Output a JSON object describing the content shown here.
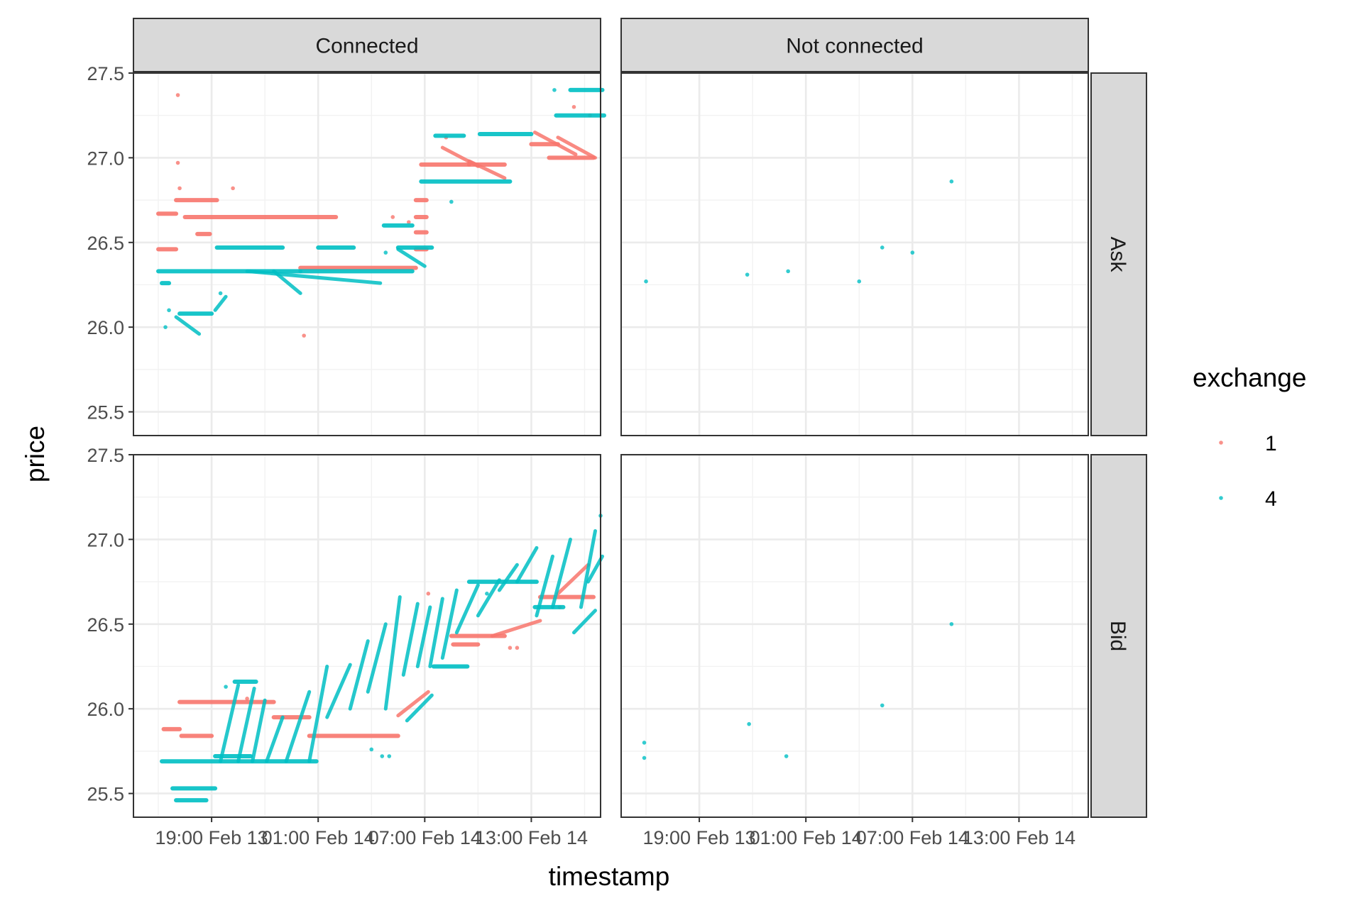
{
  "chart_data": {
    "type": "scatter",
    "facet_columns": [
      "Connected",
      "Not connected"
    ],
    "facet_rows": [
      "Ask",
      "Bid"
    ],
    "xlabel": "timestamp",
    "ylabel": "price",
    "x_tick_labels": [
      "19:00 Feb 13",
      "01:00 Feb 14",
      "07:00 Feb 14",
      "13:00 Feb 14"
    ],
    "x_ticks_hours": [
      19,
      25,
      31,
      37
    ],
    "xlim_hours": [
      14.6,
      40.9
    ],
    "y_ticks": [
      25.5,
      26.0,
      26.5,
      27.0,
      27.5
    ],
    "y_tick_labels": [
      "25.5",
      "26.0",
      "26.5",
      "27.0",
      "27.5"
    ],
    "ylim": [
      25.36,
      27.5
    ],
    "grid": true,
    "legend": {
      "title": "exchange",
      "position": "right",
      "entries": [
        {
          "label": "1",
          "color": "#F8766D"
        },
        {
          "label": "4",
          "color": "#00BFC4"
        }
      ]
    },
    "series": [
      {
        "name": "1",
        "color": "#F8766D",
        "facets": {
          "Connected|Ask": {
            "segments": [
              [
                16.0,
                17.0,
                26.67
              ],
              [
                16.0,
                17.0,
                26.46
              ],
              [
                17.0,
                19.3,
                26.75
              ],
              [
                17.5,
                26.0,
                26.65
              ],
              [
                24.0,
                30.5,
                26.35
              ],
              [
                18.2,
                18.9,
                26.55
              ],
              [
                30.5,
                31.1,
                26.75
              ],
              [
                30.5,
                31.1,
                26.65
              ],
              [
                30.5,
                31.1,
                26.56
              ],
              [
                30.5,
                31.1,
                26.46
              ],
              [
                30.8,
                33.5,
                26.96
              ],
              [
                33.5,
                35.5,
                26.96
              ],
              [
                37.0,
                38.5,
                27.08
              ],
              [
                38.0,
                40.5,
                27.0
              ]
            ],
            "ramps": [
              [
                32.0,
                27.06,
                34.0,
                26.95
              ],
              [
                33.5,
                26.98,
                35.5,
                26.88
              ],
              [
                37.2,
                27.15,
                39.5,
                27.02
              ],
              [
                38.5,
                27.12,
                40.6,
                27.0
              ]
            ],
            "points": [
              [
                17.1,
                27.37
              ],
              [
                17.1,
                26.97
              ],
              [
                17.2,
                26.82
              ],
              [
                20.2,
                26.82
              ],
              [
                29.2,
                26.65
              ],
              [
                24.2,
                25.95
              ],
              [
                32.2,
                27.12
              ],
              [
                39.4,
                27.3
              ],
              [
                40.3,
                27.25
              ],
              [
                30.1,
                26.62
              ]
            ]
          },
          "Connected|Bid": {
            "segments": [
              [
                17.2,
                22.5,
                26.04
              ],
              [
                22.5,
                24.5,
                25.95
              ],
              [
                16.3,
                17.2,
                25.88
              ],
              [
                17.3,
                19.0,
                25.84
              ],
              [
                24.5,
                29.5,
                25.84
              ],
              [
                32.5,
                35.5,
                26.43
              ],
              [
                37.5,
                40.5,
                26.66
              ],
              [
                32.6,
                34.0,
                26.38
              ]
            ],
            "ramps": [
              [
                29.5,
                25.96,
                31.2,
                26.1
              ],
              [
                34.8,
                26.43,
                37.5,
                26.52
              ],
              [
                38.5,
                26.68,
                40.2,
                26.85
              ]
            ],
            "points": [
              [
                21.0,
                26.06
              ],
              [
                31.2,
                26.68
              ],
              [
                35.8,
                26.36
              ],
              [
                36.2,
                26.36
              ],
              [
                38.6,
                26.6
              ]
            ]
          },
          "Not connected|Ask": {
            "segments": [],
            "ramps": [],
            "points": []
          },
          "Not connected|Bid": {
            "segments": [],
            "ramps": [],
            "points": []
          }
        }
      },
      {
        "name": "4",
        "color": "#00BFC4",
        "facets": {
          "Connected|Ask": {
            "segments": [
              [
                16.0,
                30.3,
                26.33
              ],
              [
                17.2,
                19.0,
                26.08
              ],
              [
                19.3,
                23.0,
                26.47
              ],
              [
                25.0,
                27.0,
                26.47
              ],
              [
                28.7,
                30.3,
                26.6
              ],
              [
                31.6,
                33.2,
                27.13
              ],
              [
                34.1,
                37.0,
                27.14
              ],
              [
                30.8,
                35.8,
                26.86
              ],
              [
                38.4,
                41.1,
                27.25
              ],
              [
                29.5,
                31.4,
                26.47
              ],
              [
                39.2,
                41.0,
                27.4
              ],
              [
                16.2,
                16.6,
                26.26
              ]
            ],
            "ramps": [
              [
                17.0,
                26.06,
                18.3,
                25.96
              ],
              [
                21.0,
                26.33,
                28.5,
                26.26
              ],
              [
                22.5,
                26.33,
                24.0,
                26.2
              ],
              [
                29.5,
                26.46,
                31.0,
                26.36
              ],
              [
                19.2,
                26.1,
                19.8,
                26.18
              ]
            ],
            "points": [
              [
                16.4,
                26.0
              ],
              [
                16.6,
                26.1
              ],
              [
                19.5,
                26.2
              ],
              [
                24.0,
                26.33
              ],
              [
                38.3,
                27.4
              ],
              [
                32.5,
                26.74
              ],
              [
                28.8,
                26.44
              ]
            ]
          },
          "Connected|Bid": {
            "segments": [
              [
                16.8,
                19.2,
                25.53
              ],
              [
                17.0,
                18.7,
                25.46
              ],
              [
                16.2,
                24.9,
                25.69
              ],
              [
                19.2,
                21.2,
                25.72
              ],
              [
                31.5,
                33.4,
                26.25
              ],
              [
                33.5,
                37.3,
                26.75
              ],
              [
                37.2,
                38.8,
                26.6
              ],
              [
                20.3,
                21.5,
                26.16
              ]
            ],
            "ramps": [
              [
                19.5,
                25.69,
                20.5,
                26.14
              ],
              [
                20.5,
                25.69,
                21.4,
                26.12
              ],
              [
                21.3,
                25.69,
                22.0,
                26.05
              ],
              [
                22.1,
                25.69,
                23.0,
                25.95
              ],
              [
                23.2,
                25.69,
                24.5,
                26.1
              ],
              [
                24.5,
                25.69,
                25.5,
                26.25
              ],
              [
                25.5,
                25.95,
                26.8,
                26.26
              ],
              [
                26.8,
                26.0,
                27.8,
                26.4
              ],
              [
                27.8,
                26.1,
                28.8,
                26.5
              ],
              [
                28.8,
                26.0,
                29.6,
                26.66
              ],
              [
                29.8,
                26.2,
                30.6,
                26.62
              ],
              [
                30.6,
                26.25,
                31.3,
                26.6
              ],
              [
                31.3,
                26.25,
                32.0,
                26.65
              ],
              [
                32.0,
                26.3,
                32.8,
                26.7
              ],
              [
                32.8,
                26.45,
                34.0,
                26.73
              ],
              [
                34.0,
                26.55,
                35.2,
                26.76
              ],
              [
                35.2,
                26.7,
                36.2,
                26.85
              ],
              [
                36.2,
                26.75,
                37.3,
                26.95
              ],
              [
                37.3,
                26.55,
                38.2,
                26.9
              ],
              [
                38.2,
                26.6,
                39.2,
                27.0
              ],
              [
                39.4,
                26.45,
                40.6,
                26.58
              ],
              [
                39.8,
                26.6,
                40.6,
                27.05
              ],
              [
                40.2,
                26.75,
                41.0,
                26.9
              ],
              [
                30.0,
                25.93,
                31.4,
                26.08
              ]
            ],
            "points": [
              [
                19.8,
                26.13
              ],
              [
                28.0,
                25.76
              ],
              [
                28.6,
                25.72
              ],
              [
                29.0,
                25.72
              ],
              [
                40.9,
                27.14
              ],
              [
                34.5,
                26.68
              ]
            ]
          },
          "Not connected|Ask": {
            "segments": [],
            "ramps": [],
            "points": [
              [
                16.0,
                26.27
              ],
              [
                21.7,
                26.31
              ],
              [
                24.0,
                26.33
              ],
              [
                28.0,
                26.27
              ],
              [
                29.3,
                26.47
              ],
              [
                31.0,
                26.44
              ],
              [
                33.2,
                26.86
              ]
            ]
          },
          "Not connected|Bid": {
            "segments": [],
            "ramps": [],
            "points": [
              [
                15.9,
                25.8
              ],
              [
                15.9,
                25.71
              ],
              [
                21.8,
                25.91
              ],
              [
                23.9,
                25.72
              ],
              [
                29.3,
                26.02
              ],
              [
                33.2,
                26.5
              ]
            ]
          }
        }
      }
    ]
  }
}
